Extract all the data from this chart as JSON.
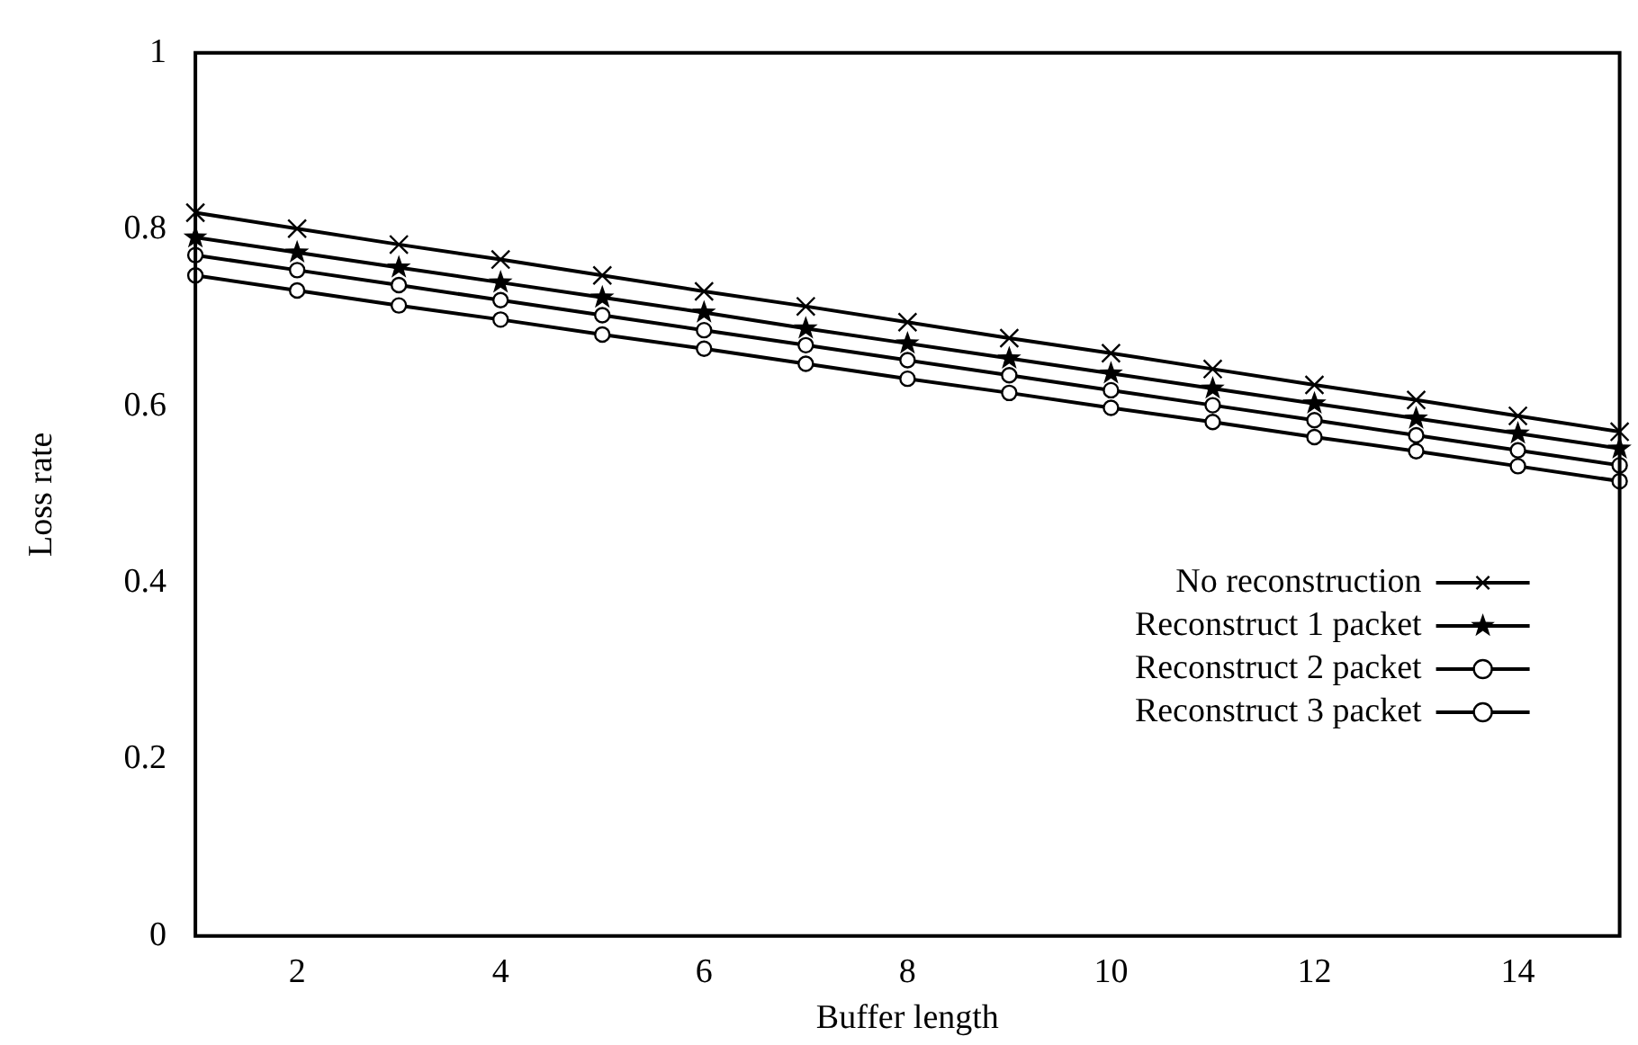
{
  "chart_data": {
    "type": "line",
    "xlabel": "Buffer length",
    "ylabel": "Loss rate",
    "x": [
      1,
      2,
      3,
      4,
      5,
      6,
      7,
      8,
      9,
      10,
      11,
      12,
      13,
      14,
      15
    ],
    "series": [
      {
        "name": "No reconstruction",
        "color": "#000000",
        "marker": "cross",
        "values": [
          0.819,
          0.801,
          0.783,
          0.766,
          0.748,
          0.73,
          0.713,
          0.695,
          0.677,
          0.66,
          0.642,
          0.624,
          0.607,
          0.589,
          0.571
        ]
      },
      {
        "name": "Reconstruct 1 packet",
        "color": "#000000",
        "marker": "star",
        "values": [
          0.791,
          0.774,
          0.757,
          0.74,
          0.723,
          0.706,
          0.688,
          0.671,
          0.654,
          0.637,
          0.62,
          0.603,
          0.586,
          0.569,
          0.552
        ]
      },
      {
        "name": "Reconstruct 2 packet",
        "color": "#000000",
        "marker": "circle",
        "values": [
          0.771,
          0.754,
          0.737,
          0.72,
          0.703,
          0.686,
          0.669,
          0.652,
          0.635,
          0.618,
          0.601,
          0.584,
          0.567,
          0.55,
          0.533
        ]
      },
      {
        "name": "Reconstruct 3 packet",
        "color": "#000000",
        "marker": "circle",
        "values": [
          0.748,
          0.731,
          0.714,
          0.698,
          0.681,
          0.665,
          0.648,
          0.631,
          0.615,
          0.598,
          0.582,
          0.565,
          0.549,
          0.532,
          0.515
        ]
      }
    ],
    "xlim": [
      1,
      15
    ],
    "xticks": [
      2,
      4,
      6,
      8,
      10,
      12,
      14
    ],
    "ylim": [
      0,
      1
    ],
    "yticks": [
      0,
      0.2,
      0.4,
      0.6,
      0.8,
      1
    ],
    "legend": "right",
    "line_style": "solid"
  }
}
